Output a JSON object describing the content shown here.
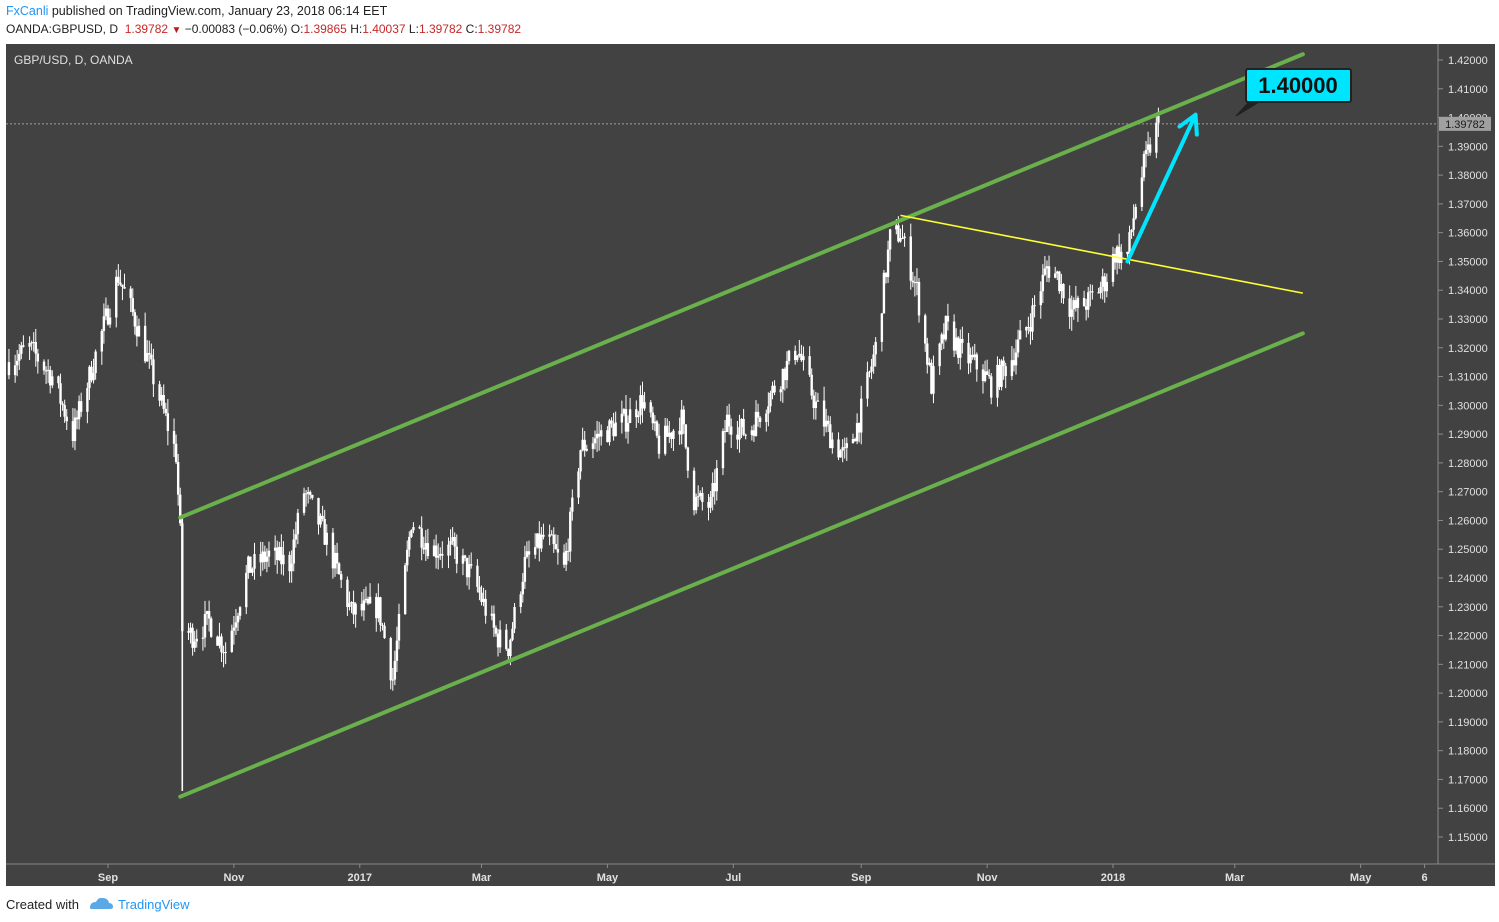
{
  "header": {
    "author": "FxCanli",
    "published_text": "published on TradingView.com, January 23, 2018 06:14 EET",
    "symbol": "OANDA:GBPUSD, D",
    "last": "1.39782",
    "change": "−0.00083 (−0.06%)",
    "open_label": "O:",
    "open": "1.39865",
    "high_label": "H:",
    "high": "1.40037",
    "low_label": "L:",
    "low": "1.39782",
    "close_label": "C:",
    "close": "1.39782"
  },
  "footer": {
    "created_with": "Created with",
    "brand": "TradingView"
  },
  "colors": {
    "background": "#424242",
    "candle": "#ffffff",
    "channel": "#6ab04c",
    "trendline": "#ffff33",
    "arrow": "#00e5ff",
    "callout": "#00e5ff"
  },
  "chart_data": {
    "type": "candlestick",
    "title": "GBP/USD, D, OANDA",
    "ylim": [
      1.145,
      1.425
    ],
    "y_ticks": [
      "1.42000",
      "1.41000",
      "1.40000",
      "1.39000",
      "1.38000",
      "1.37000",
      "1.36000",
      "1.35000",
      "1.34000",
      "1.33000",
      "1.32000",
      "1.31000",
      "1.30000",
      "1.29000",
      "1.28000",
      "1.27000",
      "1.26000",
      "1.25000",
      "1.24000",
      "1.23000",
      "1.22000",
      "1.21000",
      "1.20000",
      "1.19000",
      "1.18000",
      "1.17000",
      "1.16000",
      "1.15000"
    ],
    "x_ticks": [
      "Sep",
      "Nov",
      "2017",
      "Mar",
      "May",
      "Jul",
      "Sep",
      "Nov",
      "2018",
      "Mar",
      "May",
      "6"
    ],
    "x_tick_dates": [
      "2016-09-01",
      "2016-11-01",
      "2017-01-01",
      "2017-03-01",
      "2017-05-01",
      "2017-07-01",
      "2017-09-01",
      "2017-11-01",
      "2018-01-01",
      "2018-03-01",
      "2018-05-01",
      "2018-06-01"
    ],
    "current_price": "1.39782",
    "target_label": "1.40000",
    "price_path": [
      [
        "2016-07-15",
        1.315
      ],
      [
        "2016-07-25",
        1.32
      ],
      [
        "2016-08-05",
        1.31
      ],
      [
        "2016-08-15",
        1.29
      ],
      [
        "2016-08-25",
        1.315
      ],
      [
        "2016-09-06",
        1.345
      ],
      [
        "2016-09-15",
        1.328
      ],
      [
        "2016-09-25",
        1.305
      ],
      [
        "2016-10-04",
        1.283
      ],
      [
        "2016-10-06",
        1.255
      ],
      [
        "2016-10-07",
        1.222
      ],
      [
        "2016-10-12",
        1.22
      ],
      [
        "2016-10-20",
        1.225
      ],
      [
        "2016-10-28",
        1.215
      ],
      [
        "2016-11-08",
        1.243
      ],
      [
        "2016-11-18",
        1.248
      ],
      [
        "2016-11-28",
        1.245
      ],
      [
        "2016-12-05",
        1.27
      ],
      [
        "2016-12-15",
        1.255
      ],
      [
        "2016-12-28",
        1.228
      ],
      [
        "2017-01-10",
        1.23
      ],
      [
        "2017-01-17",
        1.205
      ],
      [
        "2017-01-26",
        1.26
      ],
      [
        "2017-02-05",
        1.25
      ],
      [
        "2017-02-15",
        1.25
      ],
      [
        "2017-02-25",
        1.24
      ],
      [
        "2017-03-08",
        1.22
      ],
      [
        "2017-03-14",
        1.216
      ],
      [
        "2017-03-22",
        1.245
      ],
      [
        "2017-04-01",
        1.255
      ],
      [
        "2017-04-10",
        1.243
      ],
      [
        "2017-04-18",
        1.285
      ],
      [
        "2017-04-28",
        1.29
      ],
      [
        "2017-05-10",
        1.295
      ],
      [
        "2017-05-18",
        1.302
      ],
      [
        "2017-05-26",
        1.286
      ],
      [
        "2017-06-06",
        1.295
      ],
      [
        "2017-06-12",
        1.267
      ],
      [
        "2017-06-20",
        1.265
      ],
      [
        "2017-06-28",
        1.295
      ],
      [
        "2017-07-08",
        1.29
      ],
      [
        "2017-07-20",
        1.305
      ],
      [
        "2017-08-01",
        1.32
      ],
      [
        "2017-08-10",
        1.3
      ],
      [
        "2017-08-18",
        1.288
      ],
      [
        "2017-08-24",
        1.282
      ],
      [
        "2017-08-31",
        1.295
      ],
      [
        "2017-09-08",
        1.32
      ],
      [
        "2017-09-15",
        1.358
      ],
      [
        "2017-09-20",
        1.36
      ],
      [
        "2017-09-28",
        1.34
      ],
      [
        "2017-10-05",
        1.307
      ],
      [
        "2017-10-12",
        1.327
      ],
      [
        "2017-10-20",
        1.318
      ],
      [
        "2017-10-28",
        1.313
      ],
      [
        "2017-11-03",
        1.307
      ],
      [
        "2017-11-12",
        1.315
      ],
      [
        "2017-11-22",
        1.33
      ],
      [
        "2017-11-30",
        1.348
      ],
      [
        "2017-12-05",
        1.345
      ],
      [
        "2017-12-12",
        1.333
      ],
      [
        "2017-12-20",
        1.336
      ],
      [
        "2017-12-28",
        1.343
      ],
      [
        "2018-01-02",
        1.353
      ],
      [
        "2018-01-08",
        1.352
      ],
      [
        "2018-01-12",
        1.37
      ],
      [
        "2018-01-16",
        1.383
      ],
      [
        "2018-01-19",
        1.39
      ],
      [
        "2018-01-23",
        1.398
      ]
    ],
    "channel_upper": [
      [
        "2016-10-06",
        1.261
      ],
      [
        "2018-04-03",
        1.422
      ]
    ],
    "channel_lower": [
      [
        "2016-10-06",
        1.164
      ],
      [
        "2018-04-03",
        1.325
      ]
    ],
    "trendline": [
      [
        "2017-09-20",
        1.366
      ],
      [
        "2018-04-03",
        1.339
      ]
    ],
    "arrow": [
      [
        "2018-01-08",
        1.35
      ],
      [
        "2018-02-10",
        1.401
      ]
    ]
  }
}
